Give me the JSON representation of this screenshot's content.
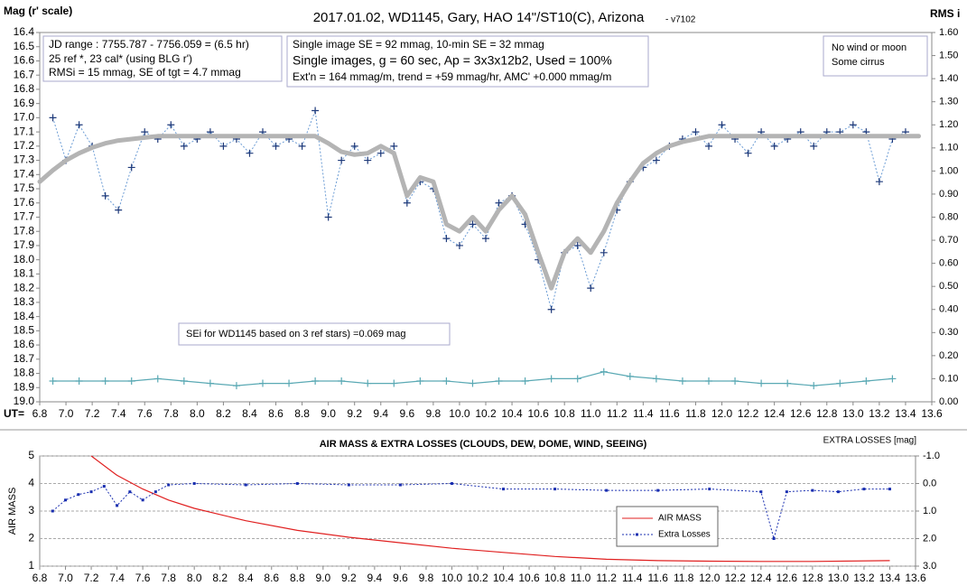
{
  "chart_data": [
    {
      "type": "line",
      "title": "2017.01.02, WD1145, Gary, HAO  14\"/ST10(C), Arizona",
      "subtitle": "- v7102",
      "ylabel": "Mag (r' scale)",
      "y2label": "RMS i",
      "xlabel": "UT=",
      "annotations": [
        "JD range  : 7755.787 - 7756.059 = (6.5 hr)",
        "25 ref *, 23 cal* (using BLG r')",
        "RMSi = 15 mmag, SE of tgt = 4.7 mmag",
        "Single image SE = 92 mmag, 10-min SE = 32 mmag",
        "Single images, g = 60 sec, Ap = 3x3x12b2, Used = 100%",
        "Ext'n = 164 mmag/m, trend = +59 mmag/hr, AMC' +0.000 mmag/m",
        "No wind or moon",
        "Some cirrus",
        "SEi for WD1145 based on 3 ref stars) =0.069 mag"
      ],
      "xlim": [
        6.8,
        13.6
      ],
      "xticks": [
        6.8,
        {
          "value": 7,
          "label": "7.0"
        },
        7.2,
        7.4,
        7.6,
        7.8,
        {
          "value": 8,
          "label": "8.0"
        },
        8.2,
        8.4,
        8.6,
        8.8,
        {
          "value": 9,
          "label": "9.0"
        },
        9.2,
        9.4,
        9.6,
        9.8,
        {
          "value": 10,
          "label": "10.0"
        },
        10.2,
        10.4,
        10.6,
        10.8,
        {
          "value": 11,
          "label": "11.0"
        },
        11.2,
        11.4,
        11.6,
        11.8,
        {
          "value": 12,
          "label": "12.0"
        },
        12.2,
        12.4,
        12.6,
        12.8,
        {
          "value": 13,
          "label": "13.0"
        },
        13.2,
        13.4,
        13.6
      ],
      "ylim": [
        16.4,
        19
      ],
      "y_inverted": true,
      "yticks": [
        16.4,
        16.5,
        16.6,
        16.7,
        16.8,
        16.9,
        {
          "value": 17,
          "label": "17.0"
        },
        17.1,
        17.2,
        17.3,
        17.4,
        17.5,
        17.6,
        17.7,
        17.8,
        17.9,
        {
          "value": 18,
          "label": "18.0"
        },
        18.1,
        18.2,
        18.3,
        18.4,
        18.5,
        18.6,
        18.7,
        18.8,
        18.9,
        {
          "value": 19,
          "label": "19.0"
        }
      ],
      "y2lim": [
        0,
        1.6
      ],
      "y2ticks": [
        {
          "value": 0,
          "label": "0.00"
        },
        {
          "value": 0.1,
          "label": "0.10"
        },
        {
          "value": 0.2,
          "label": "0.20"
        },
        {
          "value": 0.3,
          "label": "0.30"
        },
        {
          "value": 0.4,
          "label": "0.40"
        },
        {
          "value": 0.5,
          "label": "0.50"
        },
        {
          "value": 0.6,
          "label": "0.60"
        },
        {
          "value": 0.7,
          "label": "0.70"
        },
        {
          "value": 0.8,
          "label": "0.80"
        },
        {
          "value": 0.9,
          "label": "0.90"
        },
        {
          "value": 1,
          "label": "1.00"
        },
        {
          "value": 1.1,
          "label": "1.10"
        },
        {
          "value": 1.2,
          "label": "1.20"
        },
        {
          "value": 1.3,
          "label": "1.30"
        },
        {
          "value": 1.4,
          "label": "1.40"
        },
        {
          "value": 1.5,
          "label": "1.50"
        },
        {
          "value": 1.6,
          "label": "1.60"
        }
      ],
      "grid": false,
      "series": [
        {
          "color": "#6a9bd4",
          "marker_color": "#1f3a7a",
          "line": "dotted",
          "marker": "cross",
          "x": [
            6.9,
            7.0,
            7.1,
            7.2,
            7.3,
            7.4,
            7.5,
            7.6,
            7.7,
            7.8,
            7.9,
            8.0,
            8.1,
            8.2,
            8.3,
            8.4,
            8.5,
            8.6,
            8.7,
            8.8,
            8.9,
            9.0,
            9.1,
            9.2,
            9.3,
            9.4,
            9.5,
            9.6,
            9.7,
            9.8,
            9.9,
            10.0,
            10.1,
            10.2,
            10.3,
            10.4,
            10.5,
            10.6,
            10.7,
            10.8,
            10.9,
            11.0,
            11.1,
            11.2,
            11.3,
            11.4,
            11.5,
            11.6,
            11.7,
            11.8,
            11.9,
            12.0,
            12.1,
            12.2,
            12.3,
            12.4,
            12.5,
            12.6,
            12.7,
            12.8,
            12.9,
            13.0,
            13.1,
            13.2,
            13.3,
            13.4
          ],
          "values": [
            17.0,
            17.3,
            17.05,
            17.2,
            17.55,
            17.65,
            17.35,
            17.1,
            17.15,
            17.05,
            17.2,
            17.15,
            17.1,
            17.2,
            17.15,
            17.25,
            17.1,
            17.2,
            17.15,
            17.2,
            16.95,
            17.7,
            17.3,
            17.2,
            17.3,
            17.25,
            17.2,
            17.6,
            17.45,
            17.5,
            17.85,
            17.9,
            17.75,
            17.85,
            17.6,
            17.55,
            17.75,
            18.0,
            18.35,
            17.95,
            17.9,
            18.2,
            17.95,
            17.65,
            17.45,
            17.35,
            17.3,
            17.2,
            17.15,
            17.1,
            17.2,
            17.05,
            17.15,
            17.25,
            17.1,
            17.2,
            17.15,
            17.1,
            17.2,
            17.1,
            17.1,
            17.05,
            17.1,
            17.45,
            17.15,
            17.1
          ]
        },
        {
          "color": "#b4b4b4",
          "line": "thick",
          "marker": "none",
          "x": [
            6.8,
            6.9,
            7.0,
            7.1,
            7.2,
            7.3,
            7.4,
            7.5,
            7.6,
            7.7,
            7.8,
            7.9,
            8.0,
            8.1,
            8.2,
            8.3,
            8.4,
            8.5,
            8.6,
            8.7,
            8.8,
            8.9,
            9.0,
            9.1,
            9.2,
            9.3,
            9.4,
            9.5,
            9.6,
            9.7,
            9.8,
            9.9,
            10.0,
            10.1,
            10.2,
            10.3,
            10.4,
            10.5,
            10.6,
            10.7,
            10.8,
            10.9,
            11.0,
            11.1,
            11.2,
            11.3,
            11.4,
            11.5,
            11.6,
            11.7,
            11.8,
            11.9,
            12.0,
            12.1,
            12.2,
            12.3,
            12.4,
            12.5,
            12.6,
            12.7,
            12.8,
            12.9,
            13.0,
            13.1,
            13.2,
            13.3,
            13.4,
            13.5
          ],
          "values": [
            17.45,
            17.37,
            17.3,
            17.25,
            17.21,
            17.18,
            17.16,
            17.15,
            17.14,
            17.13,
            17.13,
            17.13,
            17.13,
            17.13,
            17.13,
            17.13,
            17.13,
            17.13,
            17.13,
            17.13,
            17.13,
            17.13,
            17.18,
            17.24,
            17.26,
            17.25,
            17.2,
            17.25,
            17.55,
            17.42,
            17.45,
            17.75,
            17.8,
            17.7,
            17.8,
            17.65,
            17.55,
            17.68,
            17.95,
            18.2,
            17.95,
            17.85,
            17.95,
            17.8,
            17.6,
            17.45,
            17.32,
            17.25,
            17.2,
            17.17,
            17.15,
            17.13,
            17.13,
            17.13,
            17.13,
            17.13,
            17.13,
            17.13,
            17.13,
            17.13,
            17.13,
            17.13,
            17.13,
            17.13,
            17.13,
            17.13,
            17.13,
            17.13
          ]
        },
        {
          "color": "#5aa9b4",
          "line": "solid",
          "marker": "cross",
          "axis": "y2",
          "x": [
            6.9,
            7.1,
            7.3,
            7.5,
            7.7,
            7.9,
            8.1,
            8.3,
            8.5,
            8.7,
            8.9,
            9.1,
            9.3,
            9.5,
            9.7,
            9.9,
            10.1,
            10.3,
            10.5,
            10.7,
            10.9,
            11.1,
            11.3,
            11.5,
            11.7,
            11.9,
            12.1,
            12.3,
            12.5,
            12.7,
            12.9,
            13.1,
            13.3
          ],
          "values": [
            0.09,
            0.09,
            0.09,
            0.09,
            0.1,
            0.09,
            0.08,
            0.07,
            0.08,
            0.08,
            0.09,
            0.09,
            0.08,
            0.08,
            0.09,
            0.09,
            0.08,
            0.09,
            0.09,
            0.1,
            0.1,
            0.13,
            0.11,
            0.1,
            0.09,
            0.09,
            0.09,
            0.08,
            0.08,
            0.07,
            0.08,
            0.09,
            0.1
          ]
        }
      ]
    },
    {
      "type": "line",
      "title": "AIR MASS & EXTRA LOSSES (CLOUDS, DEW, DOME, WIND, SEEING)",
      "ylabel": "AIR MASS",
      "y2label": "EXTRA LOSSES [mag]",
      "xlim": [
        6.8,
        13.6
      ],
      "xticks": [
        6.8,
        {
          "value": 7,
          "label": "7.0"
        },
        7.2,
        7.4,
        7.6,
        7.8,
        {
          "value": 8,
          "label": "8.0"
        },
        8.2,
        8.4,
        8.6,
        8.8,
        {
          "value": 9,
          "label": "9.0"
        },
        9.2,
        9.4,
        9.6,
        9.8,
        {
          "value": 10,
          "label": "10.0"
        },
        10.2,
        10.4,
        10.6,
        10.8,
        {
          "value": 11,
          "label": "11.0"
        },
        11.2,
        11.4,
        11.6,
        11.8,
        {
          "value": 12,
          "label": "12.0"
        },
        12.2,
        12.4,
        12.6,
        12.8,
        {
          "value": 13,
          "label": "13.0"
        },
        13.2,
        13.4,
        13.6
      ],
      "ylim": [
        1,
        5
      ],
      "yticks": [
        1,
        2,
        3,
        4,
        5
      ],
      "y2lim": [
        -1,
        3
      ],
      "y2_inverted": true,
      "y2ticks": [
        {
          "value": -1,
          "label": "-1.0"
        },
        {
          "value": 0,
          "label": "0.0"
        },
        {
          "value": 1,
          "label": "1.0"
        },
        {
          "value": 2,
          "label": "2.0"
        },
        {
          "value": 3,
          "label": "3.0"
        }
      ],
      "grid": true,
      "legend": "lower right",
      "series": [
        {
          "name": "AIR MASS",
          "color": "#e02020",
          "line": "solid",
          "marker": "none",
          "x": [
            7.2,
            7.4,
            7.6,
            7.8,
            8.0,
            8.4,
            8.8,
            9.2,
            9.6,
            10.0,
            10.4,
            10.8,
            11.2,
            11.6,
            12.0,
            12.4,
            12.8,
            13.4
          ],
          "values": [
            5.0,
            4.3,
            3.8,
            3.4,
            3.1,
            2.65,
            2.3,
            2.05,
            1.85,
            1.65,
            1.5,
            1.35,
            1.25,
            1.2,
            1.18,
            1.17,
            1.17,
            1.2
          ]
        },
        {
          "name": "Extra Losses",
          "color": "#1a2fb0",
          "line": "dotted",
          "marker": "square",
          "axis": "y2",
          "x": [
            6.9,
            7.0,
            7.1,
            7.2,
            7.3,
            7.4,
            7.5,
            7.6,
            7.7,
            7.8,
            8.0,
            8.4,
            8.8,
            9.2,
            9.6,
            10.0,
            10.4,
            10.8,
            11.2,
            11.6,
            12.0,
            12.4,
            12.5,
            12.6,
            12.8,
            13.0,
            13.2,
            13.4
          ],
          "values": [
            1.0,
            0.6,
            0.4,
            0.3,
            0.1,
            0.8,
            0.3,
            0.6,
            0.3,
            0.05,
            0.0,
            0.05,
            0.0,
            0.05,
            0.05,
            0.0,
            0.2,
            0.2,
            0.25,
            0.25,
            0.2,
            0.3,
            2.0,
            0.3,
            0.25,
            0.3,
            0.2,
            0.2
          ]
        }
      ]
    }
  ]
}
